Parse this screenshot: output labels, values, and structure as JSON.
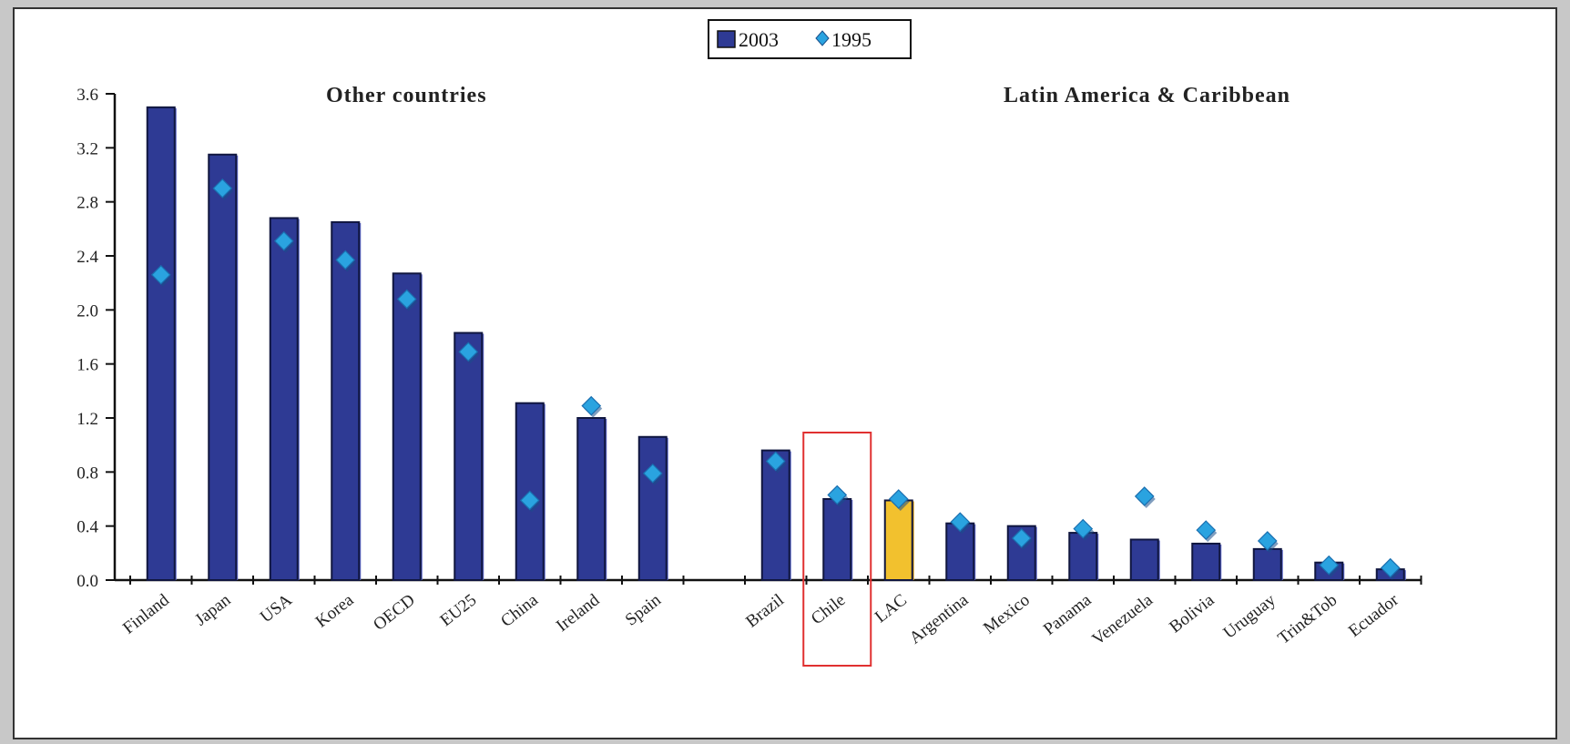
{
  "chart_data": {
    "type": "bar",
    "title": "",
    "xlabel": "",
    "ylabel": "",
    "ylim": [
      0,
      3.6
    ],
    "yticks": [
      "0.0",
      "0.4",
      "0.8",
      "1.2",
      "1.6",
      "2.0",
      "2.4",
      "2.8",
      "3.2",
      "3.6"
    ],
    "legend": {
      "placement": "top-center",
      "entries": [
        "2003",
        "1995"
      ]
    },
    "groups": [
      {
        "title": "Other countries",
        "categories": [
          "Finland",
          "Japan",
          "USA",
          "Korea",
          "OECD",
          "EU25",
          "China",
          "Ireland",
          "Spain"
        ]
      },
      {
        "title": "Latin America & Caribbean",
        "categories": [
          "Brazil",
          "Chile",
          "LAC",
          "Argentina",
          "Mexico",
          "Panama",
          "Venezuela",
          "Bolivia",
          "Uruguay",
          "Trin&Tob",
          "Ecuador"
        ]
      }
    ],
    "categories": [
      "Finland",
      "Japan",
      "USA",
      "Korea",
      "OECD",
      "EU25",
      "China",
      "Ireland",
      "Spain",
      "Brazil",
      "Chile",
      "LAC",
      "Argentina",
      "Mexico",
      "Panama",
      "Venezuela",
      "Bolivia",
      "Uruguay",
      "Trin&Tob",
      "Ecuador"
    ],
    "series": [
      {
        "name": "2003",
        "kind": "bar",
        "values": [
          3.5,
          3.15,
          2.68,
          2.65,
          2.27,
          1.83,
          1.31,
          1.2,
          1.06,
          0.96,
          0.6,
          0.59,
          0.42,
          0.4,
          0.35,
          0.3,
          0.27,
          0.23,
          0.13,
          0.08
        ]
      },
      {
        "name": "1995",
        "kind": "marker",
        "values": [
          2.26,
          2.9,
          2.51,
          2.37,
          2.08,
          1.69,
          0.59,
          1.29,
          0.79,
          0.88,
          0.63,
          0.6,
          0.43,
          0.31,
          0.38,
          0.62,
          0.37,
          0.29,
          0.11,
          0.09
        ]
      }
    ],
    "highlight": {
      "category": "LAC",
      "color": "#f2c12e"
    },
    "boxed": "Chile",
    "colors": {
      "bar": "#2e3a94",
      "bar_edge": "#10163f",
      "bar_shadow": "#5a66c8",
      "marker": "#2aa3e0",
      "marker_shadow": "#1a4f8a",
      "box": "#e03030"
    }
  }
}
